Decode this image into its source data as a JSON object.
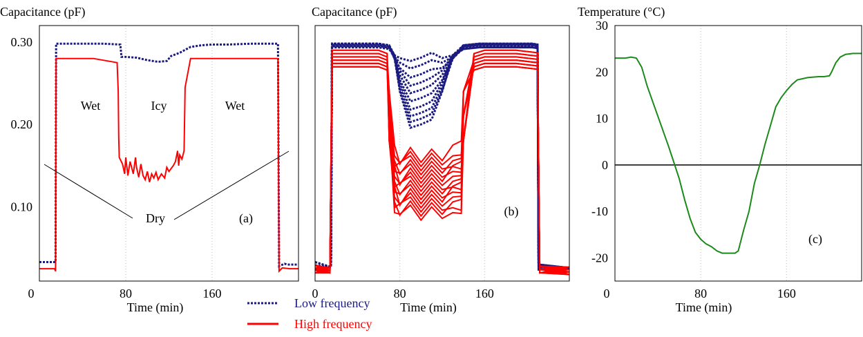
{
  "chart_data": [
    {
      "id": "a",
      "type": "line",
      "panel_label": "(a)",
      "ylabel": "Capacitance (pF)",
      "xlabel": "Time (min)",
      "xlim": [
        0,
        240
      ],
      "ylim": [
        0.01,
        0.32
      ],
      "yticks": [
        {
          "v": 0.3,
          "label": "0.30"
        },
        {
          "v": 0.2,
          "label": "0.20"
        },
        {
          "v": 0.1,
          "label": "0.10"
        }
      ],
      "xticks": [
        {
          "v": 0,
          "label": "0"
        },
        {
          "v": 80,
          "label": "80"
        },
        {
          "v": 160,
          "label": "160"
        }
      ],
      "grid": "vertical dotted",
      "annotations": [
        "Wet",
        "Icy",
        "Wet",
        "Dry"
      ],
      "series": [
        {
          "name": "Low frequency",
          "color": "#1a1a80",
          "dash": "dotted",
          "x": [
            0,
            13,
            15,
            15.5,
            30,
            60,
            75,
            76,
            80,
            90,
            100,
            110,
            118,
            122,
            130,
            140,
            150,
            160,
            175,
            195,
            215,
            221,
            222,
            227,
            230,
            240
          ],
          "y": [
            0.033,
            0.033,
            0.033,
            0.298,
            0.298,
            0.298,
            0.297,
            0.282,
            0.282,
            0.281,
            0.278,
            0.276,
            0.277,
            0.283,
            0.287,
            0.294,
            0.296,
            0.297,
            0.297,
            0.298,
            0.298,
            0.298,
            0.028,
            0.031,
            0.03,
            0.03
          ]
        },
        {
          "name": "High frequency",
          "color": "#ff0000",
          "dash": "solid",
          "x": [
            0,
            14,
            15,
            15.5,
            30,
            50,
            72,
            73,
            73.5,
            74,
            77,
            79,
            80,
            82,
            84,
            87,
            89,
            90,
            92,
            94,
            96,
            98,
            100,
            102,
            104,
            106,
            108,
            110,
            113,
            116,
            118,
            120,
            124,
            126,
            128,
            129,
            130,
            132,
            134,
            135,
            140,
            142,
            145,
            160,
            180,
            200,
            220,
            221,
            222,
            225,
            232,
            240
          ],
          "y": [
            0.025,
            0.025,
            0.022,
            0.28,
            0.28,
            0.28,
            0.275,
            0.24,
            0.185,
            0.16,
            0.152,
            0.14,
            0.16,
            0.138,
            0.155,
            0.14,
            0.16,
            0.148,
            0.136,
            0.152,
            0.138,
            0.133,
            0.143,
            0.13,
            0.14,
            0.135,
            0.142,
            0.133,
            0.14,
            0.135,
            0.148,
            0.143,
            0.15,
            0.155,
            0.168,
            0.15,
            0.163,
            0.158,
            0.168,
            0.245,
            0.28,
            0.28,
            0.28,
            0.28,
            0.28,
            0.28,
            0.28,
            0.28,
            0.022,
            0.026,
            0.025,
            0.025
          ]
        }
      ]
    },
    {
      "id": "b",
      "type": "line",
      "panel_label": "(b)",
      "ylabel": "Capacitance (pF)",
      "xlabel": "Time (min)",
      "xlim": [
        0,
        240
      ],
      "ylim": [
        0.01,
        0.32
      ],
      "xticks": [
        {
          "v": 0,
          "label": "0"
        },
        {
          "v": 80,
          "label": "80"
        },
        {
          "v": 160,
          "label": "160"
        }
      ],
      "grid": "vertical dotted",
      "series": [
        {
          "name": "Low frequency",
          "color": "#1a1a80",
          "dash": "dotted",
          "x": [
            0,
            15,
            16,
            60,
            70,
            75,
            80,
            90,
            100,
            110,
            120,
            130,
            140,
            155,
            165,
            180,
            205,
            210,
            211,
            240
          ],
          "lows": [
            0.277,
            0.268,
            0.257,
            0.247,
            0.238,
            0.228,
            0.218,
            0.21,
            0.203,
            0.196
          ],
          "high": 0.298,
          "rim": 0.284
        },
        {
          "name": "High frequency",
          "color": "#ff0000",
          "dash": "solid",
          "x": [
            0,
            14,
            16,
            60,
            68,
            70,
            75,
            80,
            90,
            100,
            110,
            120,
            130,
            138,
            140,
            150,
            160,
            190,
            210,
            212,
            240
          ],
          "lows": [
            0.16,
            0.155,
            0.15,
            0.145,
            0.14,
            0.135,
            0.13,
            0.125,
            0.12,
            0.115,
            0.11,
            0.105,
            0.1,
            0.095,
            0.09
          ],
          "plateaus": [
            0.27,
            0.274,
            0.278,
            0.282,
            0.286,
            0.29
          ]
        }
      ]
    },
    {
      "id": "c",
      "type": "line",
      "panel_label": "(c)",
      "ylabel": "Temperature (°C)",
      "xlabel": "Time (min)",
      "xlim": [
        0,
        230
      ],
      "ylim": [
        -25,
        30
      ],
      "yticks": [
        {
          "v": 30,
          "label": "30"
        },
        {
          "v": 20,
          "label": "20"
        },
        {
          "v": 10,
          "label": "10"
        },
        {
          "v": 0,
          "label": "0"
        },
        {
          "v": -10,
          "label": "-10"
        },
        {
          "v": -20,
          "label": "-20"
        }
      ],
      "xticks": [
        {
          "v": 0,
          "label": "0"
        },
        {
          "v": 80,
          "label": "80"
        },
        {
          "v": 160,
          "label": "160"
        }
      ],
      "grid": "vertical dotted",
      "zero_line": true,
      "series": [
        {
          "name": "Temperature",
          "color": "#1a8a1a",
          "dash": "solid",
          "x": [
            0,
            10,
            15,
            20,
            25,
            30,
            40,
            50,
            55,
            60,
            65,
            70,
            75,
            80,
            85,
            90,
            95,
            100,
            108,
            112,
            115,
            120,
            125,
            130,
            135,
            140,
            145,
            150,
            155,
            160,
            165,
            170,
            180,
            190,
            195,
            200,
            202,
            206,
            210,
            215,
            222,
            230
          ],
          "y": [
            23,
            23,
            23.2,
            23,
            21,
            17,
            10.5,
            4,
            0.5,
            -3,
            -7.5,
            -11.5,
            -14.5,
            -16,
            -17,
            -17.6,
            -18.5,
            -19,
            -19,
            -19,
            -18.5,
            -14,
            -10,
            -4,
            0,
            4.5,
            8.5,
            12.5,
            14.5,
            16,
            17.3,
            18.3,
            18.8,
            19,
            19,
            19.2,
            20,
            22,
            23.2,
            23.8,
            24,
            24
          ]
        }
      ]
    }
  ],
  "legend": [
    {
      "label": "Low frequency",
      "color": "#1a1a80",
      "dash": "dotted"
    },
    {
      "label": "High frequency",
      "color": "#ff0000",
      "dash": "solid"
    }
  ]
}
